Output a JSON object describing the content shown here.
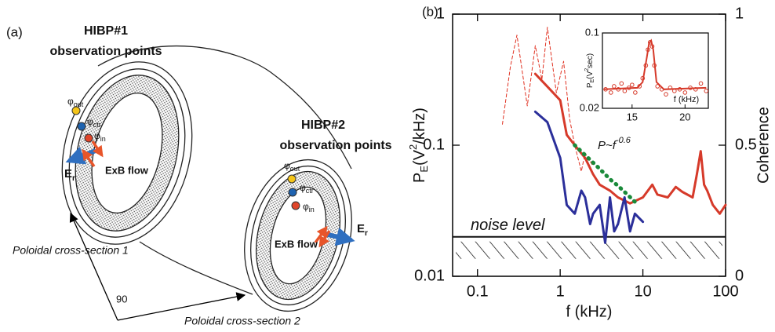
{
  "panel_a": {
    "label": "(a)",
    "hibp1": {
      "title": "HIBP#1",
      "subtitle": "observation points"
    },
    "hibp2": {
      "title": "HIBP#2",
      "subtitle": "observation points"
    },
    "points_1": [
      {
        "symbol": "φ",
        "sub": "out"
      },
      {
        "symbol": "φ",
        "sub": "ctr"
      },
      {
        "symbol": "φ",
        "sub": "in"
      }
    ],
    "points_2": [
      {
        "symbol": "φ",
        "sub": "out"
      },
      {
        "symbol": "φ",
        "sub": "ctr"
      },
      {
        "symbol": "φ",
        "sub": "in"
      }
    ],
    "flow_1": "ExB flow",
    "flow_2": "ExB flow",
    "field_1": {
      "base": "E",
      "sub": "r"
    },
    "field_2": {
      "base": "E",
      "sub": "r"
    },
    "section_1": "Poloidal cross-section 1",
    "section_2": "Poloidal  cross-section 2",
    "angle": "90"
  },
  "chart_data": {
    "type": "line",
    "panel_label": "(b)",
    "x_label": "f (kHz)",
    "y_label": {
      "base": "P",
      "sub": "E",
      "mid": "(V",
      "sup": "2",
      "end": "/kHz)"
    },
    "y2_label": "Coherence",
    "log_x": true,
    "log_y": true,
    "xlim": [
      0.05,
      100
    ],
    "ylim": [
      0.01,
      1
    ],
    "y2lim": [
      0,
      1
    ],
    "xticks": [
      0.1,
      1,
      10,
      100
    ],
    "yticks": [
      0.01,
      0.1,
      1
    ],
    "y2ticks": [
      0,
      0.5,
      1
    ],
    "series": [
      {
        "color": "#d63a2a",
        "style": "solid",
        "width": 3,
        "x": [
          0.5,
          0.7,
          1.0,
          1.2,
          1.5,
          2,
          2.5,
          3,
          4,
          5,
          7,
          10,
          13,
          15,
          20,
          25,
          30,
          40,
          45,
          50,
          55,
          60,
          70,
          85,
          100
        ],
        "values": [
          0.35,
          0.28,
          0.22,
          0.12,
          0.1,
          0.08,
          0.06,
          0.05,
          0.045,
          0.04,
          0.036,
          0.04,
          0.05,
          0.042,
          0.04,
          0.048,
          0.044,
          0.04,
          0.06,
          0.09,
          0.05,
          0.045,
          0.035,
          0.03,
          0.035
        ]
      },
      {
        "color": "#2b2f9a",
        "style": "solid",
        "width": 3,
        "x": [
          0.5,
          0.7,
          1.0,
          1.2,
          1.5,
          1.8,
          2,
          2.3,
          2.5,
          3,
          3.5,
          4,
          4.5,
          5,
          6,
          7,
          8,
          10
        ],
        "values": [
          0.18,
          0.15,
          0.08,
          0.035,
          0.03,
          0.045,
          0.04,
          0.025,
          0.03,
          0.035,
          0.018,
          0.04,
          0.022,
          0.025,
          0.04,
          0.022,
          0.03,
          0.026
        ]
      },
      {
        "color": "#e03020",
        "style": "dashed",
        "width": 1,
        "axis": "y2",
        "x": [
          0.2,
          0.25,
          0.3,
          0.4,
          0.5,
          0.6,
          0.7,
          0.9,
          1.1,
          1.3,
          1.5,
          1.8,
          2,
          2.5
        ],
        "values": [
          0.58,
          0.8,
          0.92,
          0.65,
          0.88,
          0.75,
          0.95,
          0.7,
          0.82,
          0.6,
          0.5,
          0.4,
          0.47,
          0.42
        ]
      },
      {
        "color": "#1a8a3a",
        "style": "dotted",
        "width": 5,
        "x": [
          1.5,
          2,
          3,
          4,
          5,
          6,
          8
        ],
        "values": [
          0.1,
          0.084,
          0.066,
          0.055,
          0.049,
          0.044,
          0.037
        ]
      }
    ],
    "noise_level": {
      "label": "noise level",
      "value": 0.02
    },
    "fit_annotation": {
      "base": "P~f",
      "sup": "-0.6"
    },
    "inset": {
      "x_label": "f (kHz)",
      "y_label": {
        "base": "P",
        "sub": "E",
        "mid": "(V",
        "sup": "2",
        "end": "sec)"
      },
      "color": "#d63a2a",
      "xlim": [
        12.2,
        22.2
      ],
      "ylim": [
        0.02,
        0.1
      ],
      "log_y": true,
      "xticks": [
        15,
        20
      ],
      "yticks": [
        0.02,
        0.1
      ],
      "points": {
        "x": [
          12.5,
          13,
          13.3,
          13.7,
          14,
          14.3,
          14.7,
          15,
          15.3,
          15.7,
          16,
          16.3,
          16.5,
          16.7,
          16.9,
          17.1,
          17.4,
          17.8,
          18.2,
          18.6,
          19,
          19.5,
          20,
          20.5,
          21,
          21.5,
          22
        ],
        "values": [
          0.03,
          0.028,
          0.032,
          0.03,
          0.034,
          0.029,
          0.031,
          0.033,
          0.028,
          0.032,
          0.038,
          0.05,
          0.07,
          0.082,
          0.075,
          0.05,
          0.032,
          0.03,
          0.027,
          0.031,
          0.029,
          0.03,
          0.028,
          0.031,
          0.03,
          0.034,
          0.029
        ]
      },
      "line": {
        "x": [
          12.3,
          15.5,
          16,
          16.4,
          16.6,
          16.8,
          17,
          17.3,
          18,
          22
        ],
        "values": [
          0.03,
          0.031,
          0.035,
          0.06,
          0.08,
          0.085,
          0.07,
          0.035,
          0.03,
          0.031
        ]
      }
    }
  }
}
